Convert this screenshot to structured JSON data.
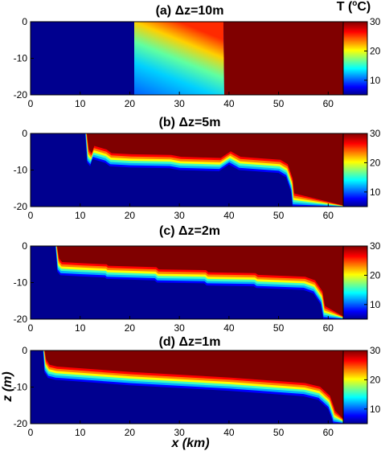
{
  "colorbar_title": "T (",
  "colorbar_title_sup": "o",
  "colorbar_title_end": "C)",
  "ylabel": "z (m)",
  "xlabel": "x (km)",
  "colors": {
    "deep_blue": "#00008f",
    "dark_red": "#800000",
    "frame": "#000000"
  },
  "chart_data": [
    {
      "type": "heatmap",
      "title": "(a) Δz=10m",
      "x_ticks": [
        0,
        10,
        20,
        30,
        40,
        50,
        60
      ],
      "y_ticks": [
        0,
        -10,
        -20
      ],
      "xlim": [
        0,
        64
      ],
      "ylim": [
        -20,
        0
      ],
      "colorbar_ticks": [
        10,
        20,
        30
      ],
      "colorbar_range": [
        5,
        30
      ],
      "profile": {
        "cold_until_x": 23,
        "front_x": [
          23,
          41,
          41.2,
          41.6,
          42
        ],
        "front_z": [
          0,
          0,
          -5,
          -13,
          -20
        ]
      }
    },
    {
      "type": "heatmap",
      "title": "(b) Δz=5m",
      "x_ticks": [
        0,
        10,
        20,
        30,
        40,
        50,
        60
      ],
      "y_ticks": [
        0,
        -10,
        -20
      ],
      "xlim": [
        0,
        64
      ],
      "ylim": [
        -20,
        0
      ],
      "colorbar_ticks": [
        10,
        20,
        30
      ],
      "colorbar_range": [
        5,
        30
      ],
      "profile": {
        "front_x": [
          11,
          11.4,
          12,
          12.5,
          15,
          16,
          20,
          28,
          30,
          38,
          40,
          42,
          50,
          51.5,
          52.5,
          52.8
        ],
        "front_z": [
          0,
          -8,
          -9,
          -7,
          -8,
          -9,
          -9.3,
          -9.5,
          -10,
          -10.3,
          -8.5,
          -10,
          -10.8,
          -12,
          -16,
          -20
        ]
      }
    },
    {
      "type": "heatmap",
      "title": "(c) Δz=2m",
      "x_ticks": [
        0,
        10,
        20,
        30,
        40,
        50,
        60
      ],
      "y_ticks": [
        0,
        -10,
        -20
      ],
      "xlim": [
        0,
        64
      ],
      "ylim": [
        -20,
        0
      ],
      "colorbar_ticks": [
        10,
        20,
        30
      ],
      "colorbar_range": [
        5,
        30
      ],
      "profile": {
        "front_x": [
          5,
          5.4,
          6,
          10,
          15,
          15.3,
          25,
          25.5,
          35,
          35.5,
          45,
          45.5,
          55,
          57,
          58.5,
          59
        ],
        "front_z": [
          0,
          -7,
          -8,
          -8.3,
          -8.6,
          -9,
          -9.4,
          -10,
          -10.2,
          -10.8,
          -11,
          -11.5,
          -12,
          -13,
          -16,
          -20
        ]
      }
    },
    {
      "type": "heatmap",
      "title": "(d) Δz=1m",
      "x_ticks": [
        0,
        10,
        20,
        30,
        40,
        50,
        60
      ],
      "y_ticks": [
        0,
        -10,
        -20
      ],
      "xlim": [
        0,
        64
      ],
      "ylim": [
        -20,
        0
      ],
      "colorbar_ticks": [
        10,
        20,
        30
      ],
      "colorbar_range": [
        5,
        30
      ],
      "profile": {
        "front_x": [
          2.5,
          2.8,
          3.5,
          5,
          20,
          40,
          55,
          58,
          60,
          60.8,
          61
        ],
        "front_z": [
          0,
          -6,
          -7.5,
          -8,
          -9.5,
          -11,
          -12.5,
          -13.5,
          -16,
          -19,
          -20
        ]
      }
    }
  ]
}
